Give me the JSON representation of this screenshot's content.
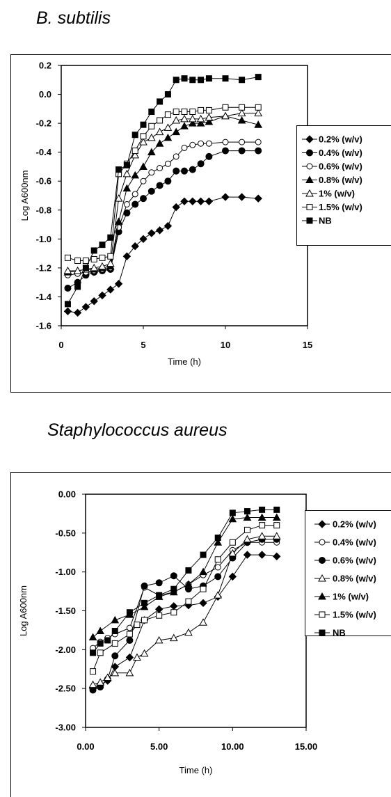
{
  "panel1_title": "B. subtilis",
  "panel2_title": "Staphylococcus aureus",
  "chart_data": [
    {
      "type": "line",
      "xlabel": "Time (h)",
      "ylabel": "Log A600nm",
      "xlim": [
        0,
        15
      ],
      "ylim": [
        -1.6,
        0.2
      ],
      "xticks": [
        0,
        5,
        10,
        15
      ],
      "xtick_labels": [
        "0",
        "5",
        "10",
        "15"
      ],
      "yticks": [
        0.2,
        0.0,
        -0.2,
        -0.4,
        -0.6,
        -0.8,
        -1.0,
        -1.2,
        -1.4,
        -1.6
      ],
      "ytick_labels": [
        "0.2",
        "0.0",
        "-0.2",
        "-0.4",
        "-0.6",
        "-0.8",
        "-1.0",
        "-1.2",
        "-1.4",
        "-1.6"
      ],
      "grid": false,
      "legend_position": "right",
      "series": [
        {
          "name": "0.2% (w/v)",
          "marker": "diamond",
          "x": [
            0.4,
            1.0,
            1.5,
            2.0,
            2.5,
            3.0,
            3.5,
            4.0,
            4.5,
            5.0,
            5.5,
            6.0,
            6.5,
            7.0,
            7.5,
            8.0,
            8.5,
            9.0,
            10.0,
            11.0,
            12.0
          ],
          "y": [
            -1.5,
            -1.51,
            -1.47,
            -1.43,
            -1.39,
            -1.35,
            -1.31,
            -1.12,
            -1.05,
            -1.0,
            -0.96,
            -0.94,
            -0.91,
            -0.78,
            -0.74,
            -0.74,
            -0.74,
            -0.74,
            -0.71,
            -0.71,
            -0.72
          ]
        },
        {
          "name": "0.4% (w/v)",
          "marker": "circle-filled",
          "x": [
            0.4,
            1.0,
            1.5,
            2.0,
            2.5,
            3.0,
            3.5,
            4.0,
            4.5,
            5.0,
            5.5,
            6.0,
            6.5,
            7.0,
            7.5,
            8.0,
            8.5,
            9.0,
            10.0,
            11.0,
            12.0
          ],
          "y": [
            -1.34,
            -1.3,
            -1.25,
            -1.23,
            -1.22,
            -1.21,
            -0.95,
            -0.82,
            -0.76,
            -0.72,
            -0.67,
            -0.63,
            -0.6,
            -0.53,
            -0.53,
            -0.52,
            -0.48,
            -0.43,
            -0.39,
            -0.39,
            -0.39
          ]
        },
        {
          "name": "0.6% (w/v)",
          "marker": "circle-open",
          "x": [
            0.4,
            1.0,
            1.5,
            2.0,
            2.5,
            3.0,
            3.5,
            4.0,
            4.5,
            5.0,
            5.5,
            6.0,
            6.5,
            7.0,
            7.5,
            8.0,
            8.5,
            9.0,
            10.0,
            11.0,
            12.0
          ],
          "y": [
            -1.25,
            -1.24,
            -1.23,
            -1.22,
            -1.21,
            -1.2,
            -0.92,
            -0.76,
            -0.69,
            -0.6,
            -0.54,
            -0.51,
            -0.48,
            -0.43,
            -0.37,
            -0.35,
            -0.34,
            -0.34,
            -0.33,
            -0.33,
            -0.33
          ]
        },
        {
          "name": "0.8% (w/v)",
          "marker": "triangle-filled",
          "x": [
            0.4,
            1.0,
            1.5,
            2.0,
            2.5,
            3.0,
            3.5,
            4.0,
            4.5,
            5.0,
            5.5,
            6.0,
            6.5,
            7.0,
            7.5,
            8.0,
            8.5,
            9.0,
            10.0,
            11.0,
            12.0
          ],
          "y": [
            -1.23,
            -1.22,
            -1.21,
            -1.21,
            -1.2,
            -1.19,
            -0.88,
            -0.65,
            -0.56,
            -0.5,
            -0.4,
            -0.34,
            -0.3,
            -0.26,
            -0.22,
            -0.2,
            -0.2,
            -0.19,
            -0.15,
            -0.18,
            -0.21
          ]
        },
        {
          "name": "1% (w/v)",
          "marker": "triangle-open",
          "x": [
            0.4,
            1.0,
            1.5,
            2.0,
            2.5,
            3.0,
            3.5,
            4.0,
            4.5,
            5.0,
            5.5,
            6.0,
            6.5,
            7.0,
            7.5,
            8.0,
            8.5,
            9.0,
            10.0,
            11.0,
            12.0
          ],
          "y": [
            -1.22,
            -1.22,
            -1.21,
            -1.2,
            -1.19,
            -1.17,
            -0.72,
            -0.55,
            -0.42,
            -0.33,
            -0.3,
            -0.26,
            -0.23,
            -0.18,
            -0.17,
            -0.17,
            -0.17,
            -0.16,
            -0.15,
            -0.13,
            -0.13
          ]
        },
        {
          "name": "1.5% (w/v)",
          "marker": "square-open",
          "x": [
            0.4,
            1.0,
            1.5,
            2.0,
            2.5,
            3.0,
            3.5,
            4.0,
            4.5,
            5.0,
            5.5,
            6.0,
            6.5,
            7.0,
            7.5,
            8.0,
            8.5,
            9.0,
            10.0,
            11.0,
            12.0
          ],
          "y": [
            -1.13,
            -1.15,
            -1.15,
            -1.14,
            -1.13,
            -1.12,
            -0.55,
            -0.48,
            -0.39,
            -0.29,
            -0.22,
            -0.18,
            -0.14,
            -0.12,
            -0.12,
            -0.12,
            -0.11,
            -0.11,
            -0.09,
            -0.09,
            -0.09
          ]
        },
        {
          "name": "NB",
          "marker": "square-filled",
          "x": [
            0.4,
            1.0,
            1.5,
            2.0,
            2.5,
            3.0,
            3.5,
            4.0,
            4.5,
            5.0,
            5.5,
            6.0,
            6.5,
            7.0,
            7.5,
            8.0,
            8.5,
            9.0,
            10.0,
            11.0,
            12.0
          ],
          "y": [
            -1.45,
            -1.33,
            -1.2,
            -1.08,
            -1.04,
            -0.99,
            -0.52,
            -0.49,
            -0.28,
            -0.21,
            -0.12,
            -0.05,
            0.0,
            0.1,
            0.11,
            0.1,
            0.1,
            0.11,
            0.11,
            0.1,
            0.12
          ]
        }
      ]
    },
    {
      "type": "line",
      "xlabel": "Time (h)",
      "ylabel": "Log A600nm",
      "xlim": [
        0,
        15
      ],
      "ylim": [
        -3.0,
        0.0
      ],
      "xticks": [
        0,
        5,
        10,
        15
      ],
      "xtick_labels": [
        "0.00",
        "5.00",
        "10.00",
        "15.00"
      ],
      "yticks": [
        0.0,
        -0.5,
        -1.0,
        -1.5,
        -2.0,
        -2.5,
        -3.0
      ],
      "ytick_labels": [
        "0.00",
        "-0.50",
        "-1.00",
        "-1.50",
        "-2.00",
        "-2.50",
        "-3.00"
      ],
      "grid": false,
      "legend_position": "right",
      "series": [
        {
          "name": "0.2% (w/v)",
          "marker": "diamond",
          "x": [
            0.5,
            1.0,
            1.5,
            2.0,
            3.0,
            4.0,
            5.0,
            6.0,
            7.0,
            8.0,
            9.0,
            10.0,
            11.0,
            12.0,
            13.0
          ],
          "y": [
            -2.5,
            -2.45,
            -2.4,
            -2.22,
            -2.1,
            -1.62,
            -1.48,
            -1.44,
            -1.43,
            -1.4,
            -1.32,
            -1.06,
            -0.78,
            -0.78,
            -0.8
          ]
        },
        {
          "name": "0.4% (w/v)",
          "marker": "circle-open",
          "x": [
            0.5,
            1.0,
            1.5,
            2.0,
            3.0,
            4.0,
            5.0,
            6.0,
            7.0,
            8.0,
            9.0,
            10.0,
            11.0,
            12.0,
            13.0
          ],
          "y": [
            -1.98,
            -1.9,
            -1.85,
            -1.8,
            -1.72,
            -1.2,
            -1.3,
            -1.26,
            -1.16,
            -1.04,
            -0.94,
            -0.72,
            -0.62,
            -0.62,
            -0.62
          ]
        },
        {
          "name": "0.6% (w/v)",
          "marker": "circle-filled",
          "x": [
            0.5,
            1.0,
            1.5,
            2.0,
            3.0,
            4.0,
            5.0,
            6.0,
            7.0,
            8.0,
            9.0,
            10.0,
            11.0,
            12.0,
            13.0
          ],
          "y": [
            -2.52,
            -2.48,
            -2.38,
            -2.08,
            -1.88,
            -1.18,
            -1.14,
            -1.05,
            -1.22,
            -1.18,
            -1.06,
            -0.82,
            -0.62,
            -0.58,
            -0.58
          ]
        },
        {
          "name": "0.8% (w/v)",
          "marker": "triangle-open",
          "x": [
            0.5,
            1.0,
            1.5,
            2.0,
            3.0,
            3.5,
            4.0,
            5.0,
            6.0,
            7.0,
            8.0,
            9.0,
            10.0,
            11.0,
            12.0,
            13.0
          ],
          "y": [
            -2.45,
            -2.42,
            -2.36,
            -2.3,
            -2.3,
            -2.1,
            -2.05,
            -1.88,
            -1.85,
            -1.78,
            -1.65,
            -1.3,
            -0.76,
            -0.58,
            -0.54,
            -0.54
          ]
        },
        {
          "name": "1% (w/v)",
          "marker": "triangle-filled",
          "x": [
            0.5,
            1.0,
            2.0,
            3.0,
            4.0,
            5.0,
            6.0,
            7.0,
            8.0,
            9.0,
            10.0,
            11.0,
            12.0,
            13.0
          ],
          "y": [
            -1.84,
            -1.76,
            -1.62,
            -1.55,
            -1.45,
            -1.32,
            -1.26,
            -1.16,
            -1.0,
            -0.62,
            -0.32,
            -0.3,
            -0.3,
            -0.3
          ]
        },
        {
          "name": "1.5% (w/v)",
          "marker": "square-open",
          "x": [
            0.5,
            1.0,
            2.0,
            3.0,
            3.5,
            4.0,
            5.0,
            6.0,
            7.0,
            8.0,
            9.0,
            10.0,
            11.0,
            12.0,
            13.0
          ],
          "y": [
            -2.28,
            -2.04,
            -1.92,
            -1.8,
            -1.68,
            -1.62,
            -1.56,
            -1.52,
            -1.38,
            -1.22,
            -0.84,
            -0.62,
            -0.46,
            -0.4,
            -0.4
          ]
        },
        {
          "name": "NB",
          "marker": "square-filled",
          "x": [
            0.5,
            1.0,
            1.5,
            2.0,
            3.0,
            4.0,
            5.0,
            6.0,
            7.0,
            8.0,
            9.0,
            10.0,
            11.0,
            12.0,
            13.0
          ],
          "y": [
            -2.04,
            -1.92,
            -1.88,
            -1.76,
            -1.52,
            -1.4,
            -1.3,
            -1.22,
            -0.98,
            -0.78,
            -0.56,
            -0.24,
            -0.22,
            -0.2,
            -0.2
          ]
        }
      ]
    }
  ]
}
